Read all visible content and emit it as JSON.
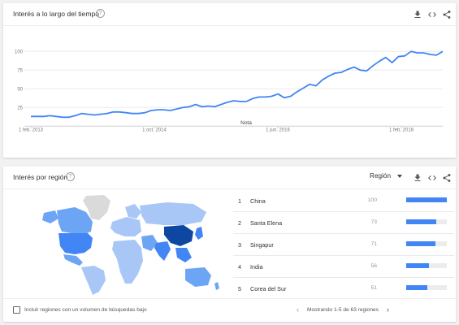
{
  "interest_over_time": {
    "title": "Interés a lo largo del tiempo",
    "note_label": "Nota",
    "chart_data": {
      "type": "line",
      "title": "Interés a lo largo del tiempo",
      "x_tick_labels": [
        "1 feb. 2013",
        "1 oct. 2014",
        "1 jun. 2016",
        "1 feb. 2018"
      ],
      "y_tick_labels": [
        "100",
        "75",
        "50",
        "25"
      ],
      "ylim": [
        0,
        100
      ],
      "grid": true,
      "series": [
        {
          "color": "#4285f4",
          "values": [
            13,
            13,
            13,
            14,
            13,
            12,
            12,
            14,
            17,
            16,
            15,
            16,
            17,
            19,
            19,
            18,
            17,
            17,
            18,
            21,
            22,
            22,
            21,
            23,
            25,
            26,
            29,
            26,
            27,
            26,
            29,
            32,
            34,
            33,
            33,
            37,
            39,
            39,
            40,
            43,
            38,
            40,
            46,
            51,
            56,
            54,
            62,
            67,
            71,
            72,
            76,
            79,
            75,
            74,
            81,
            87,
            92,
            85,
            93,
            94,
            100,
            98,
            98,
            96,
            95,
            100
          ]
        }
      ]
    }
  },
  "interest_by_region": {
    "title": "Interés por región",
    "region_selector": "Región",
    "rows": [
      {
        "rank": "1",
        "name": "China",
        "value": "100",
        "pct": 100
      },
      {
        "rank": "2",
        "name": "Santa Elena",
        "value": "73",
        "pct": 73
      },
      {
        "rank": "3",
        "name": "Singapur",
        "value": "71",
        "pct": 71
      },
      {
        "rank": "4",
        "name": "India",
        "value": "56",
        "pct": 56
      },
      {
        "rank": "5",
        "name": "Corea del Sur",
        "value": "51",
        "pct": 51
      }
    ],
    "footer_checkbox_label": "Incluir regiones con un volumen de búsquedas bajo",
    "pagination": "Mostrando 1-5 de 63 regiones"
  },
  "colors": {
    "accent": "#4285f4",
    "dark_blue": "#0d47a1",
    "mid_blue": "#6da5f5",
    "light_blue": "#a8c7f7",
    "no_data_gray": "#dadada"
  },
  "icons": [
    "help-icon",
    "download-icon",
    "embed-icon",
    "share-icon",
    "caret-down-icon",
    "chevron-left-icon",
    "chevron-right-icon"
  ]
}
